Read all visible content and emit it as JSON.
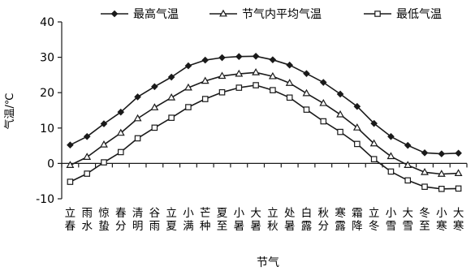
{
  "chart_data": {
    "type": "line",
    "categories": [
      "立春",
      "雨水",
      "惊蛰",
      "春分",
      "清明",
      "谷雨",
      "立夏",
      "小满",
      "芒种",
      "夏至",
      "小暑",
      "大暑",
      "立秋",
      "处暑",
      "白露",
      "秋分",
      "寒露",
      "霜降",
      "立冬",
      "小雪",
      "大雪",
      "冬至",
      "小寒",
      "大寒"
    ],
    "series": [
      {
        "name": "最高气温",
        "marker": "diamond",
        "values": [
          5.2,
          7.6,
          11.2,
          14.5,
          18.8,
          21.7,
          24.4,
          27.6,
          29.2,
          29.9,
          30.2,
          30.3,
          29.3,
          27.8,
          25.4,
          22.9,
          19.6,
          16.1,
          11.3,
          7.6,
          5.1,
          3.0,
          2.7,
          2.9
        ]
      },
      {
        "name": "节气内平均气温",
        "marker": "triangle",
        "values": [
          -0.5,
          1.8,
          5.3,
          8.6,
          12.7,
          15.8,
          18.6,
          21.4,
          23.3,
          24.7,
          25.3,
          25.7,
          24.6,
          22.7,
          19.8,
          17.0,
          13.8,
          10.1,
          5.6,
          2.0,
          -0.5,
          -2.5,
          -3.0,
          -2.8
        ]
      },
      {
        "name": "最低气温",
        "marker": "square",
        "values": [
          -5.2,
          -2.9,
          0.3,
          3.2,
          7.1,
          10.1,
          12.9,
          15.9,
          18.2,
          20.1,
          21.4,
          22.1,
          20.7,
          18.6,
          15.2,
          11.9,
          8.9,
          5.5,
          1.2,
          -2.3,
          -4.8,
          -6.6,
          -7.2,
          -7.1
        ]
      }
    ],
    "xlabel": "节气",
    "ylabel": "气温/℃",
    "ylim": [
      -10,
      40
    ],
    "yticks": [
      -10,
      0,
      10,
      20,
      30,
      40
    ],
    "legend_position": "top",
    "grid": false,
    "line_color": "#1a1a1a"
  }
}
